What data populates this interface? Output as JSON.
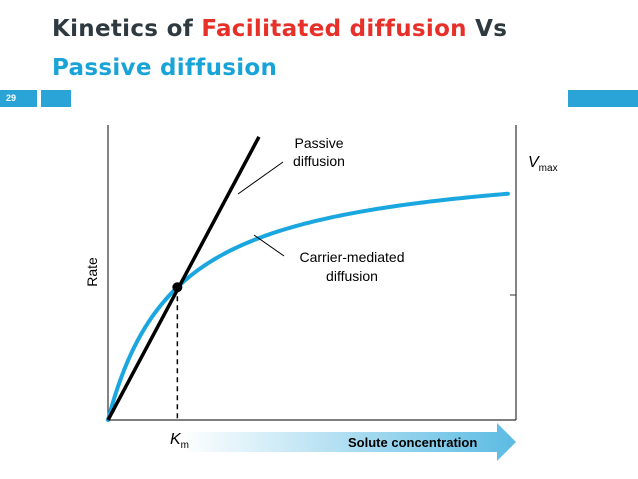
{
  "slide": {
    "number": "29",
    "title_parts": [
      {
        "text": "Kinetics of ",
        "color": "dark"
      },
      {
        "text": "Facilitated diffusion",
        "color": "red"
      },
      {
        "text": " Vs ",
        "color": "dark"
      },
      {
        "text": "Passive diffusion",
        "color": "blue"
      }
    ]
  },
  "colors": {
    "title_dark": "#2e3a40",
    "title_red": "#e8302a",
    "title_blue": "#1aa3d6",
    "accent_bar": "#2aa4d6",
    "carrier_curve": "#1aa7e0",
    "passive_line": "#000000",
    "arrow_fill_start": "#ffffff",
    "arrow_fill_end": "#5bbbe3"
  },
  "chart_data": {
    "type": "line",
    "ylabel": "Rate",
    "xlabel": "Solute concentration",
    "axis_ticks": false,
    "xlim": [
      0,
      10
    ],
    "ylim": [
      0,
      10
    ],
    "km_label": {
      "symbol": "K",
      "subscript": "m"
    },
    "vmax_label": {
      "symbol": "V",
      "subscript": "max"
    },
    "series": [
      {
        "name": "Passive diffusion",
        "kind": "linear",
        "x": [
          0,
          3.7
        ],
        "y": [
          0,
          9.6
        ]
      },
      {
        "name": "Carrier-mediated diffusion",
        "kind": "saturation",
        "vmax": 9.0,
        "km": 1.7,
        "x": [
          0,
          0.5,
          1,
          1.7,
          2.5,
          3.5,
          5,
          6.5,
          8,
          9.5
        ],
        "y": [
          0,
          2.04,
          3.33,
          4.5,
          5.36,
          6.06,
          6.72,
          7.13,
          7.42,
          7.63
        ]
      }
    ],
    "annotations": {
      "passive_line1": "Passive",
      "passive_line2": "diffusion",
      "carrier_line1": "Carrier-mediated",
      "carrier_line2": "diffusion"
    }
  }
}
